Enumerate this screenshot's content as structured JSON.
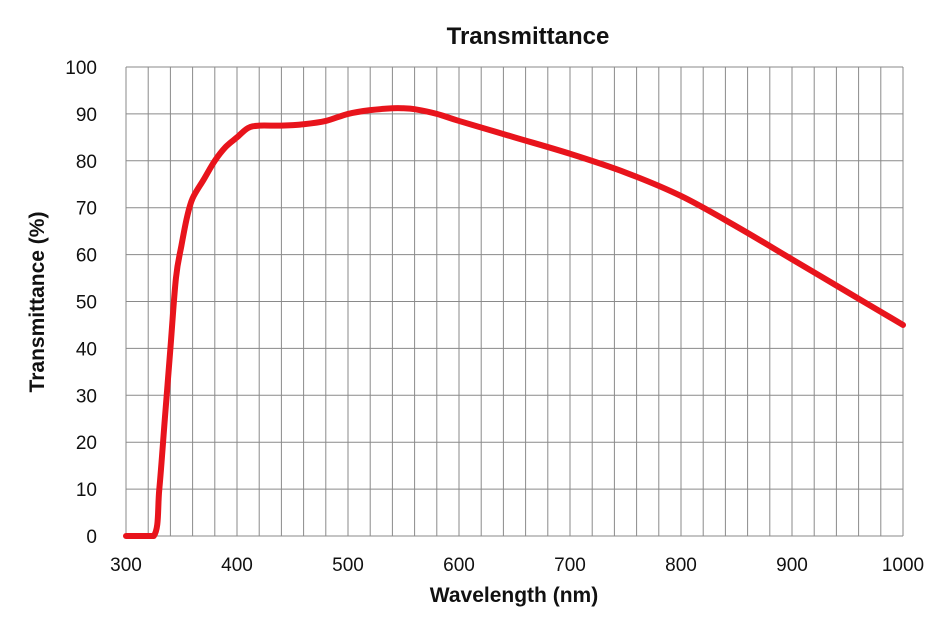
{
  "chart_data": {
    "type": "line",
    "title": "Transmittance",
    "xlabel": "Wavelength (nm)",
    "ylabel": "Transmittance (%)",
    "xlim": [
      300,
      1000
    ],
    "ylim": [
      0,
      100
    ],
    "x_ticks": [
      300,
      400,
      500,
      600,
      700,
      800,
      900,
      1000
    ],
    "y_ticks": [
      0,
      10,
      20,
      30,
      40,
      50,
      60,
      70,
      80,
      90,
      100
    ],
    "grid": true,
    "grid_x_step": 20,
    "grid_y_step": 10,
    "series": [
      {
        "color": "#e8141c",
        "x": [
          300,
          325,
          330,
          335,
          340,
          345,
          350,
          355,
          360,
          370,
          380,
          390,
          400,
          410,
          420,
          440,
          460,
          480,
          500,
          520,
          540,
          550,
          560,
          580,
          600,
          650,
          700,
          750,
          800,
          850,
          900,
          950,
          1000
        ],
        "y": [
          0,
          0,
          10,
          25,
          40,
          55,
          62,
          68,
          72,
          76,
          80,
          83,
          85,
          87,
          87.5,
          87.5,
          87.8,
          88.5,
          90,
          90.8,
          91.2,
          91.2,
          91,
          90,
          88.5,
          85,
          81.5,
          77.5,
          72.5,
          66,
          59,
          52,
          45
        ]
      }
    ]
  }
}
